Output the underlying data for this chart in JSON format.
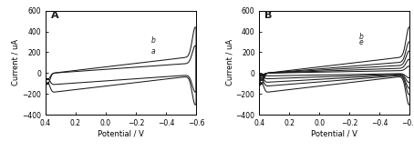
{
  "panel_A_label": "A",
  "panel_B_label": "B",
  "xlabel": "Potential / V",
  "ylabel": "Current / uA",
  "xlim": [
    0.4,
    -0.6
  ],
  "ylim": [
    -400,
    600
  ],
  "yticks": [
    -400,
    -200,
    0,
    200,
    400,
    600
  ],
  "xticks": [
    0.4,
    0.2,
    0,
    -0.2,
    -0.4,
    -0.6
  ],
  "curve_color": "#1a1a1a",
  "background": "#ffffff",
  "label_a": "a",
  "label_b": "b",
  "figsize": [
    4.54,
    1.66
  ],
  "dpi": 100,
  "amplitudes_A": [
    0.6,
    1.0
  ],
  "amplitudes_B": [
    0.15,
    0.3,
    0.48,
    0.68,
    1.0
  ]
}
